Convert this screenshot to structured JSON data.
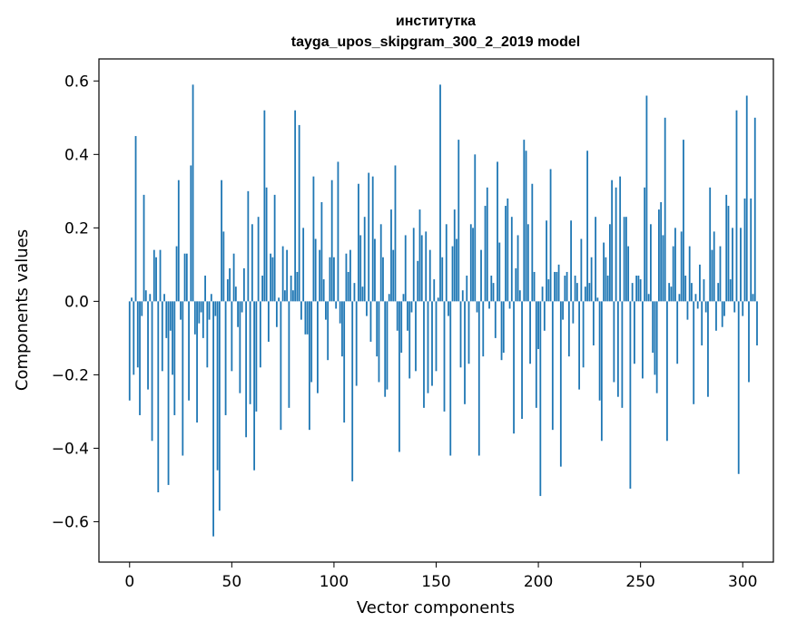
{
  "chart_data": {
    "type": "bar",
    "title": "институтка",
    "subtitle": "tayga_upos_skipgram_300_2_2019 model",
    "xlabel": "Vector components",
    "ylabel": "Components values",
    "xlim": [
      -15,
      315
    ],
    "ylim": [
      -0.71,
      0.66
    ],
    "xticks": [
      0,
      50,
      100,
      150,
      200,
      250,
      300
    ],
    "yticks": [
      -0.6,
      -0.4,
      -0.2,
      0.0,
      0.2,
      0.4,
      0.6
    ],
    "ytick_labels": [
      "−0.6",
      "−0.4",
      "−0.2",
      "0.0",
      "0.2",
      "0.4",
      "0.6"
    ],
    "bar_color": "#1f77b4",
    "values": [
      -0.27,
      0.01,
      -0.2,
      0.45,
      -0.18,
      -0.31,
      -0.04,
      0.29,
      0.03,
      -0.24,
      0.02,
      -0.38,
      0.14,
      0.12,
      -0.52,
      0.14,
      -0.19,
      0.02,
      -0.1,
      -0.5,
      -0.08,
      -0.2,
      -0.31,
      0.15,
      0.33,
      -0.05,
      -0.42,
      0.13,
      0.13,
      -0.27,
      0.37,
      0.59,
      -0.09,
      -0.33,
      -0.06,
      -0.03,
      -0.1,
      0.07,
      -0.18,
      -0.05,
      0.02,
      -0.64,
      -0.04,
      -0.46,
      -0.57,
      0.33,
      0.19,
      -0.31,
      0.06,
      0.09,
      -0.19,
      0.13,
      0.04,
      -0.07,
      -0.25,
      -0.03,
      0.09,
      -0.37,
      0.3,
      -0.28,
      0.21,
      -0.46,
      -0.3,
      0.23,
      -0.18,
      0.07,
      0.52,
      0.31,
      -0.11,
      0.13,
      0.12,
      0.29,
      -0.07,
      0.01,
      -0.35,
      0.15,
      0.03,
      0.14,
      -0.29,
      0.07,
      0.03,
      0.52,
      0.08,
      0.48,
      -0.05,
      0.2,
      -0.09,
      -0.09,
      -0.35,
      -0.22,
      0.34,
      0.17,
      -0.25,
      0.14,
      0.27,
      0.06,
      -0.05,
      -0.16,
      0.12,
      0.33,
      0.12,
      -0.02,
      0.38,
      -0.06,
      -0.15,
      -0.33,
      0.13,
      0.08,
      0.14,
      -0.49,
      0.05,
      -0.23,
      0.32,
      0.18,
      0.04,
      0.23,
      -0.04,
      0.35,
      -0.11,
      0.34,
      0.17,
      -0.15,
      -0.22,
      0.21,
      0.12,
      -0.26,
      -0.24,
      0.02,
      0.25,
      0.14,
      0.37,
      -0.08,
      -0.41,
      -0.14,
      0.02,
      0.18,
      -0.08,
      -0.21,
      -0.03,
      0.2,
      -0.19,
      0.11,
      0.25,
      0.18,
      -0.29,
      0.19,
      -0.25,
      0.14,
      -0.23,
      0.06,
      -0.19,
      0.01,
      0.59,
      0.12,
      -0.3,
      0.21,
      -0.04,
      -0.42,
      0.15,
      0.25,
      0.17,
      0.44,
      -0.18,
      0.03,
      -0.28,
      0.07,
      -0.17,
      0.21,
      0.2,
      0.4,
      -0.03,
      -0.42,
      0.14,
      -0.15,
      0.26,
      0.31,
      -0.02,
      0.07,
      0.05,
      -0.1,
      0.38,
      0.16,
      -0.16,
      -0.14,
      0.26,
      0.28,
      -0.02,
      0.23,
      -0.36,
      0.09,
      0.18,
      0.03,
      -0.32,
      0.44,
      0.41,
      0.21,
      -0.17,
      0.32,
      0.08,
      -0.29,
      -0.13,
      -0.53,
      0.04,
      -0.08,
      0.22,
      0.06,
      0.36,
      -0.35,
      0.08,
      0.08,
      0.1,
      -0.45,
      -0.05,
      0.07,
      0.08,
      -0.15,
      0.22,
      -0.06,
      0.07,
      0.05,
      -0.24,
      0.17,
      -0.18,
      0.04,
      0.41,
      0.05,
      0.12,
      -0.12,
      0.23,
      0.01,
      -0.27,
      -0.38,
      0.16,
      0.12,
      0.07,
      0.21,
      0.33,
      -0.22,
      0.31,
      -0.26,
      0.34,
      -0.29,
      0.23,
      0.23,
      0.15,
      -0.51,
      0.05,
      -0.17,
      0.07,
      0.07,
      0.06,
      -0.21,
      0.31,
      0.56,
      0.02,
      0.21,
      -0.14,
      -0.2,
      -0.25,
      0.25,
      0.27,
      0.18,
      0.5,
      -0.38,
      0.05,
      0.04,
      0.15,
      0.2,
      -0.17,
      0.02,
      0.19,
      0.44,
      0.07,
      -0.05,
      0.15,
      0.05,
      -0.28,
      0.02,
      -0.02,
      0.1,
      -0.12,
      0.06,
      -0.03,
      -0.26,
      0.31,
      0.14,
      0.19,
      -0.08,
      0.05,
      0.15,
      -0.07,
      -0.04,
      0.29,
      0.26,
      0.06,
      0.2,
      -0.03,
      0.52,
      -0.47,
      0.2,
      -0.04,
      0.28,
      0.56,
      -0.22,
      0.28,
      0.02,
      0.5,
      -0.12
    ]
  }
}
